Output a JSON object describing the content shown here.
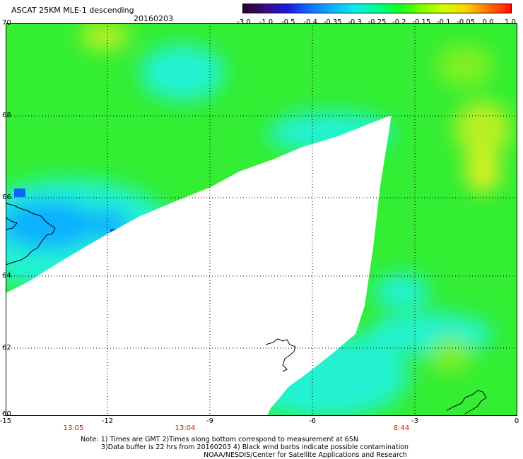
{
  "title": "ASCAT 25KM MLE-1 descending",
  "date": "20160203",
  "colorbar": {
    "labels": [
      "-3.0",
      "-1.0",
      "-0.5",
      "-0.4",
      "-0.35",
      "-0.3",
      "-0.25",
      "-0.2",
      "-0.15",
      "-0.1",
      "-0.05",
      "0.0",
      "1.0"
    ],
    "colors": [
      "#2a0030",
      "#3a0a80",
      "#1a1ae0",
      "#1070ff",
      "#10b0ff",
      "#10e8f0",
      "#00ff90",
      "#10ff20",
      "#80ff00",
      "#d0ff00",
      "#ffd000",
      "#ff7000",
      "#ff1000"
    ]
  },
  "lat_labels": [
    "70",
    "68",
    "66",
    "64",
    "62",
    "60"
  ],
  "lon_labels": [
    "-15",
    "-12",
    "-9",
    "-6",
    "-3",
    "0"
  ],
  "time_labels": [
    "13:05",
    "13:04",
    "8:44"
  ],
  "notes": {
    "line1": "Note: 1) Times are GMT 2)Times along bottom correspond to measurement at 65N",
    "line2": "3)Data buffer is 22 hrs from 20160203 4) Black wind barbs indicate possible contamination",
    "line3": "NOAA/NESDIS/Center for Satellite Applications and Research"
  },
  "colors": {
    "green": "#33ee33",
    "cyan": "#22f2d2",
    "blue": "#1070ff",
    "yellow": "#d8f020"
  }
}
